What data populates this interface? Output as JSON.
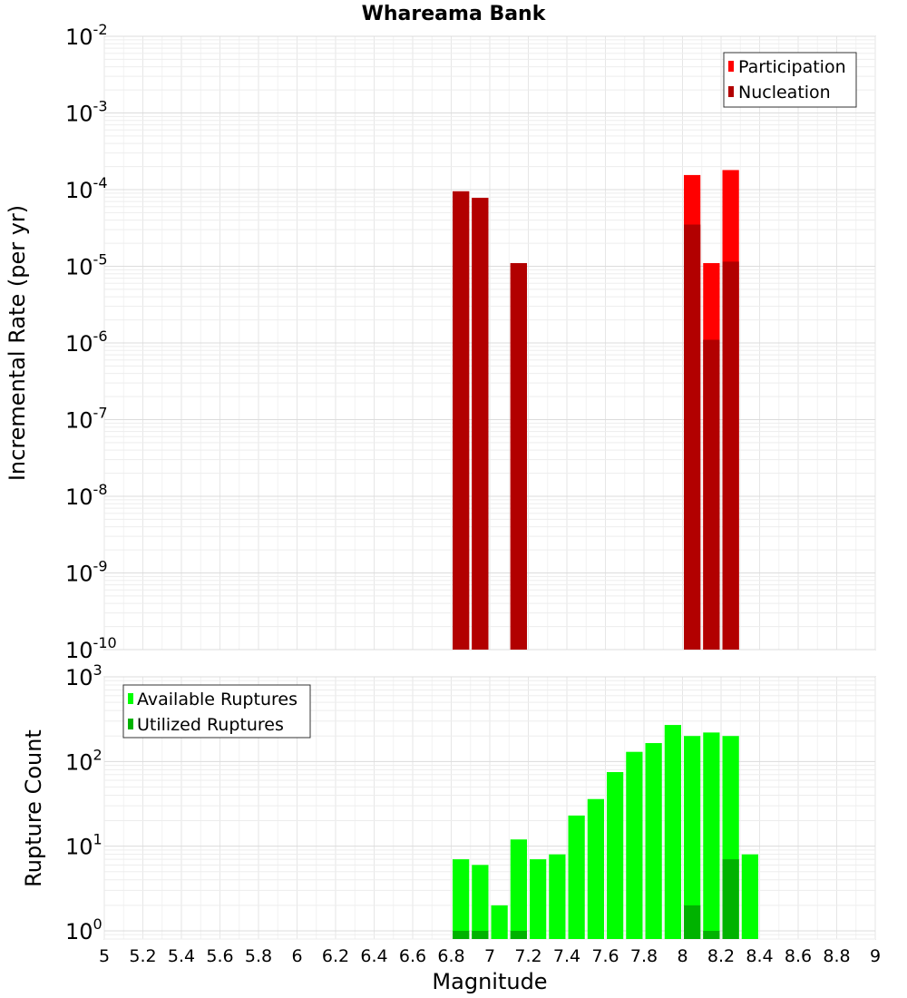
{
  "chart_data": [
    {
      "type": "bar",
      "title": "Whareama Bank",
      "xlabel": "",
      "ylabel": "Incremental Rate (per yr)",
      "xlim": [
        5,
        9
      ],
      "ylim": [
        1e-10,
        0.01
      ],
      "yscale": "log",
      "grid": true,
      "legend_placement": "top-right",
      "bin_width": 0.1,
      "series": [
        {
          "name": "Participation",
          "color": "#ff0000",
          "x": [
            6.85,
            6.95,
            7.15,
            8.05,
            8.15,
            8.25
          ],
          "values": [
            9.5e-05,
            7.8e-05,
            1.1e-05,
            0.000155,
            1.1e-05,
            0.00018
          ]
        },
        {
          "name": "Nucleation",
          "color": "#b20000",
          "x": [
            6.85,
            6.95,
            7.15,
            8.05,
            8.15,
            8.25
          ],
          "values": [
            9.5e-05,
            7.8e-05,
            1.1e-05,
            3.5e-05,
            1.1e-06,
            1.15e-05
          ]
        }
      ]
    },
    {
      "type": "bar",
      "title": "",
      "xlabel": "Magnitude",
      "ylabel": "Rupture Count",
      "xlim": [
        5,
        9
      ],
      "ylim": [
        0.8,
        1000
      ],
      "yscale": "log",
      "grid": true,
      "legend_placement": "top-left",
      "bin_width": 0.1,
      "x_ticks": [
        "5",
        "5.2",
        "5.4",
        "5.6",
        "5.8",
        "6",
        "6.2",
        "6.4",
        "6.6",
        "6.8",
        "7",
        "7.2",
        "7.4",
        "7.6",
        "7.8",
        "8",
        "8.2",
        "8.4",
        "8.6",
        "8.8",
        "9"
      ],
      "series": [
        {
          "name": "Available Ruptures",
          "color": "#00ff00",
          "x": [
            6.85,
            6.95,
            7.05,
            7.15,
            7.25,
            7.35,
            7.45,
            7.55,
            7.65,
            7.75,
            7.85,
            7.95,
            8.05,
            8.15,
            8.25,
            8.35
          ],
          "values": [
            7,
            6,
            2,
            12,
            7,
            8,
            23,
            36,
            75,
            130,
            165,
            270,
            200,
            220,
            200,
            8
          ]
        },
        {
          "name": "Utilized Ruptures",
          "color": "#00b200",
          "x": [
            6.85,
            6.95,
            7.15,
            8.05,
            8.15,
            8.25
          ],
          "values": [
            1,
            1,
            1,
            2,
            1,
            7
          ]
        }
      ]
    }
  ],
  "top_y_ticks": [
    {
      "base": "10",
      "exp": "-10"
    },
    {
      "base": "10",
      "exp": "-9"
    },
    {
      "base": "10",
      "exp": "-8"
    },
    {
      "base": "10",
      "exp": "-7"
    },
    {
      "base": "10",
      "exp": "-6"
    },
    {
      "base": "10",
      "exp": "-5"
    },
    {
      "base": "10",
      "exp": "-4"
    },
    {
      "base": "10",
      "exp": "-3"
    },
    {
      "base": "10",
      "exp": "-2"
    }
  ],
  "bottom_y_ticks": [
    {
      "base": "10",
      "exp": "0"
    },
    {
      "base": "10",
      "exp": "1"
    },
    {
      "base": "10",
      "exp": "2"
    },
    {
      "base": "10",
      "exp": "3"
    }
  ]
}
